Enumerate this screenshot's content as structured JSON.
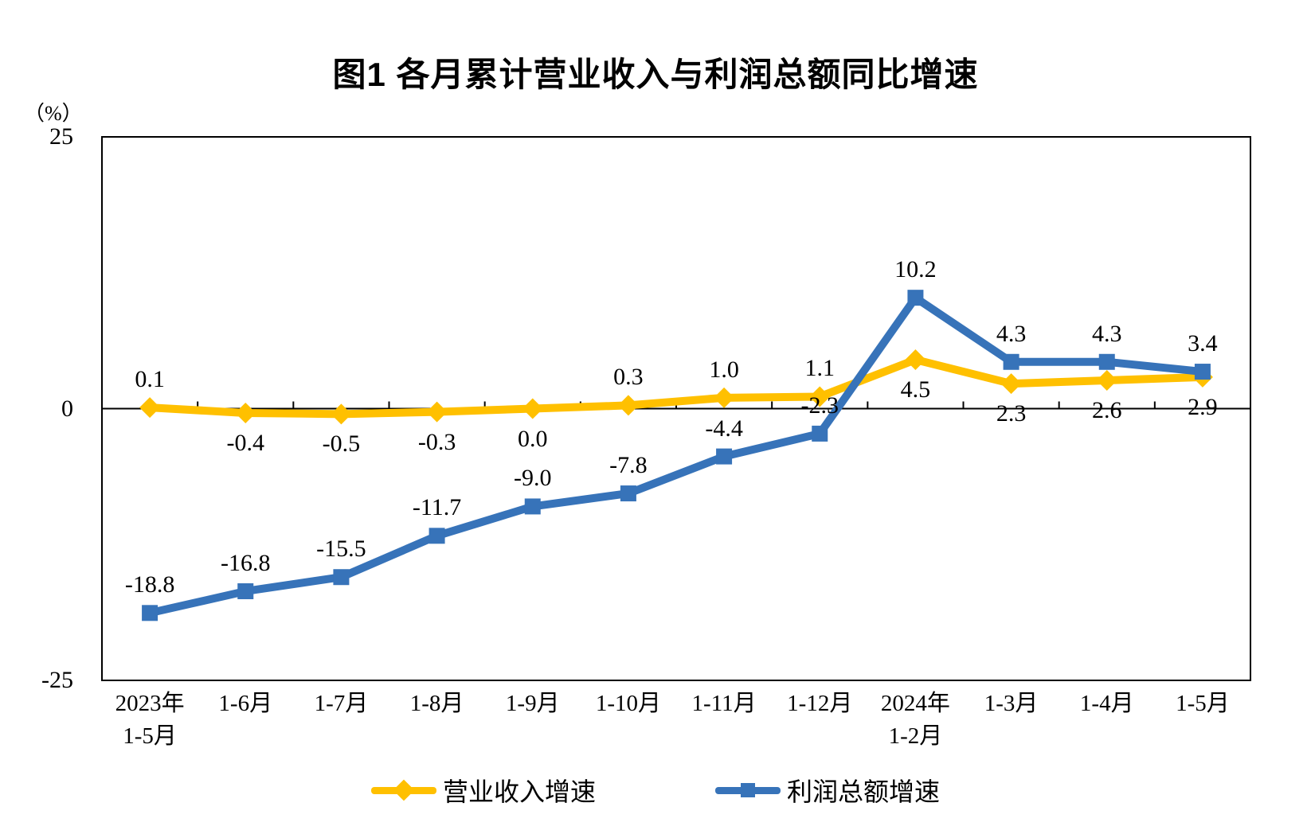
{
  "title": "图1  各月累计营业收入与利润总额同比增速",
  "axis_unit": "（%）",
  "chart_data": {
    "type": "line",
    "categories": [
      [
        "2023年",
        "1-5月"
      ],
      [
        "1-6月"
      ],
      [
        "1-7月"
      ],
      [
        "1-8月"
      ],
      [
        "1-9月"
      ],
      [
        "1-10月"
      ],
      [
        "1-11月"
      ],
      [
        "1-12月"
      ],
      [
        "2024年",
        "1-2月"
      ],
      [
        "1-3月"
      ],
      [
        "1-4月"
      ],
      [
        "1-5月"
      ]
    ],
    "series": [
      {
        "name": "营业收入增速",
        "color": "#FFC000",
        "marker": "diamond",
        "values": [
          0.1,
          -0.4,
          -0.5,
          -0.3,
          0.0,
          0.3,
          1.0,
          1.1,
          4.5,
          2.3,
          2.6,
          2.9
        ],
        "labels": [
          "0.1",
          "-0.4",
          "-0.5",
          "-0.3",
          "0.0",
          "0.3",
          "1.0",
          "1.1",
          "4.5",
          "2.3",
          "2.6",
          "2.9"
        ],
        "label_side": [
          "above",
          "below",
          "below",
          "below",
          "below",
          "above",
          "above",
          "above",
          "below",
          "below",
          "below",
          "below"
        ]
      },
      {
        "name": "利润总额增速",
        "color": "#3773B9",
        "marker": "square",
        "values": [
          -18.8,
          -16.8,
          -15.5,
          -11.7,
          -9.0,
          -7.8,
          -4.4,
          -2.3,
          10.2,
          4.3,
          4.3,
          3.4
        ],
        "labels": [
          "-18.8",
          "-16.8",
          "-15.5",
          "-11.7",
          "-9.0",
          "-7.8",
          "-4.4",
          "-2.3",
          "10.2",
          "4.3",
          "4.3",
          "3.4"
        ],
        "label_side": [
          "above",
          "above",
          "above",
          "above",
          "above",
          "above",
          "above",
          "above",
          "above",
          "above",
          "above",
          "above"
        ]
      }
    ],
    "ylim": [
      -25,
      25
    ],
    "y_ticks": [
      {
        "value": 25,
        "label": "25"
      },
      {
        "value": 0,
        "label": "0"
      },
      {
        "value": -25,
        "label": "-25"
      }
    ],
    "grid": false,
    "legend_position": "bottom",
    "axis_color": "#000000"
  },
  "legend": {
    "items": [
      {
        "label": "营业收入增速",
        "color": "#FFC000",
        "marker": "diamond"
      },
      {
        "label": "利润总额增速",
        "color": "#3773B9",
        "marker": "square"
      }
    ]
  }
}
